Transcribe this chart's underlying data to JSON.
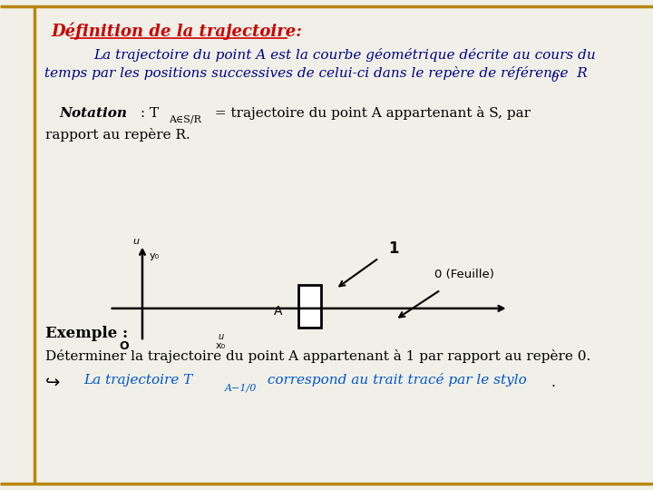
{
  "bg_color": "#f0f0e8",
  "border_color": "#b8860b",
  "title_text": "Définition de la trajectoire:",
  "title_color": "#cc0000",
  "title_fontsize": 13,
  "body1_color": "#00008b",
  "body1_line1": "La trajectoire du point A est la courbe géométrique décrite au cours du",
  "body1_line2": "temps par les positions successives de celui-ci dans le repère de référence  R",
  "body1_sub": "0",
  "body1_fontsize": 11,
  "notation_fontsize": 11,
  "exemple_fontsize": 12,
  "exemple_line2": "Déterminer la trajectoire du point A appartenant à 1 par rapport au repère 0.",
  "blue_color": "#0055cc",
  "black_color": "#000000"
}
